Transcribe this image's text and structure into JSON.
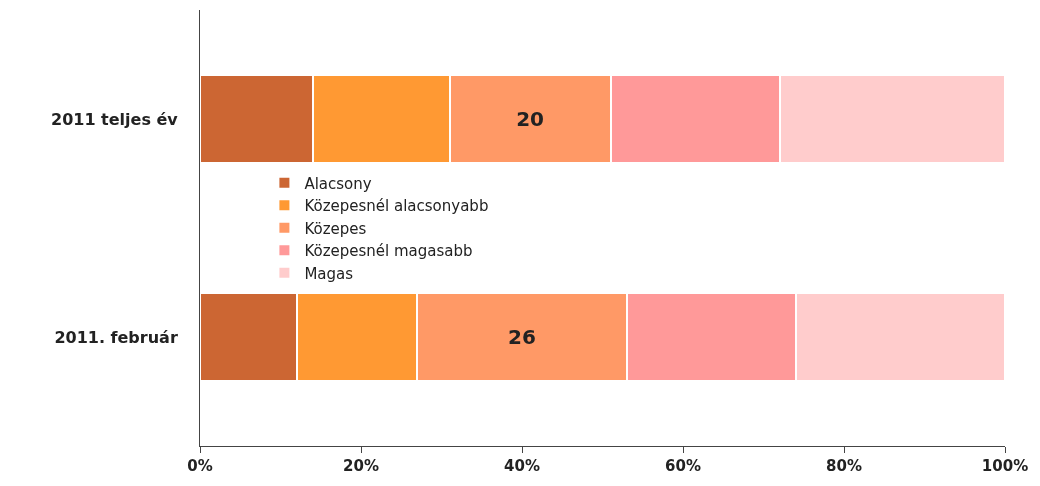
{
  "chart_data": {
    "type": "bar",
    "orientation": "horizontal",
    "stacked": true,
    "categories": [
      "2011 teljes év",
      "2011. február"
    ],
    "series": [
      {
        "name": "Alacsony",
        "color": "#cc6633",
        "values": [
          14,
          12
        ]
      },
      {
        "name": "Közepesnél alacsonyabb",
        "color": "#ff9933",
        "values": [
          17,
          15
        ]
      },
      {
        "name": "Közepes",
        "color": "#ff9966",
        "values": [
          20,
          26
        ],
        "value_labels": [
          "20",
          "26"
        ]
      },
      {
        "name": "Közepesnél magasabb",
        "color": "#ff9999",
        "values": [
          21,
          21
        ]
      },
      {
        "name": "Magas",
        "color": "#ffcccc",
        "values": [
          28,
          26
        ]
      }
    ],
    "xlim": [
      0,
      100
    ],
    "xticks": [
      {
        "value": 0,
        "label": "0%"
      },
      {
        "value": 20,
        "label": "20%"
      },
      {
        "value": 40,
        "label": "40%"
      },
      {
        "value": 60,
        "label": "60%"
      },
      {
        "value": 80,
        "label": "80%"
      },
      {
        "value": 100,
        "label": "100%"
      }
    ],
    "grid": false,
    "legend": "left"
  }
}
